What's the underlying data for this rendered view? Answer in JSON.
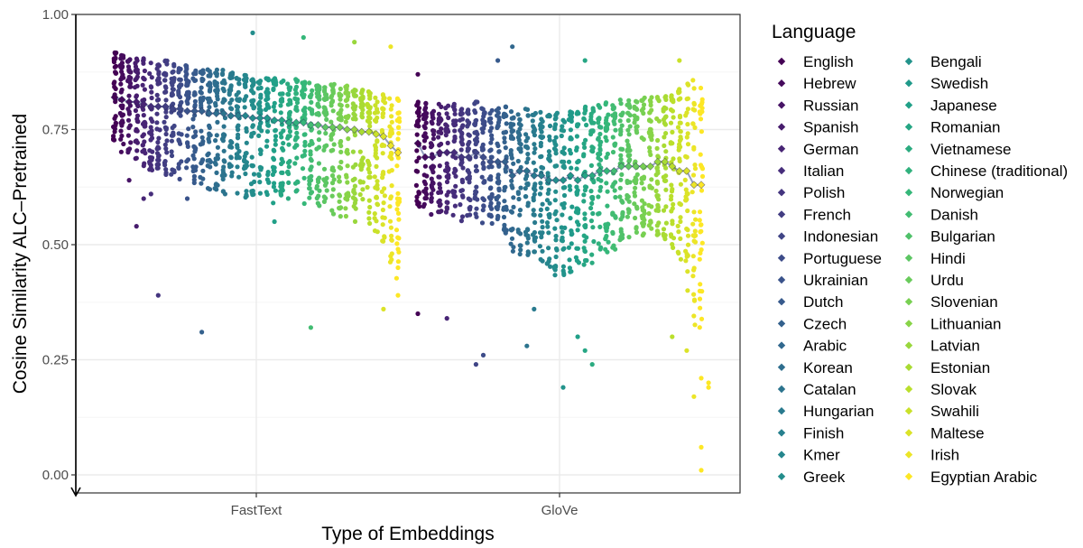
{
  "chart_data": {
    "type": "scatter",
    "title": "",
    "xlabel": "Type of Embeddings",
    "ylabel": "Cosine Similarity ALC–Pretrained",
    "categories": [
      "FastText",
      "GloVe"
    ],
    "y_ticks": [
      "0.00",
      "0.25",
      "0.50",
      "0.75",
      "1.00"
    ],
    "ylim": [
      0,
      1
    ],
    "grid": true,
    "legend_title": "Language",
    "legend_position": "right",
    "palette": "viridis",
    "languages": [
      "English",
      "Hebrew",
      "Russian",
      "Spanish",
      "German",
      "Italian",
      "Polish",
      "French",
      "Indonesian",
      "Portuguese",
      "Ukrainian",
      "Dutch",
      "Czech",
      "Arabic",
      "Korean",
      "Catalan",
      "Hungarian",
      "Finish",
      "Kmer",
      "Greek",
      "Bengali",
      "Swedish",
      "Japanese",
      "Romanian",
      "Vietnamese",
      "Chinese (traditional)",
      "Norwegian",
      "Danish",
      "Bulgarian",
      "Hindi",
      "Urdu",
      "Slovenian",
      "Lithuanian",
      "Latvian",
      "Estonian",
      "Slovak",
      "Swahili",
      "Maltese",
      "Irish",
      "Egyptian Arabic"
    ],
    "series": [
      {
        "name": "FastText",
        "means": [
          0.82,
          0.815,
          0.81,
          0.81,
          0.805,
          0.8,
          0.8,
          0.8,
          0.795,
          0.795,
          0.79,
          0.79,
          0.79,
          0.785,
          0.785,
          0.785,
          0.78,
          0.78,
          0.78,
          0.775,
          0.775,
          0.775,
          0.77,
          0.77,
          0.765,
          0.765,
          0.765,
          0.76,
          0.76,
          0.755,
          0.755,
          0.755,
          0.75,
          0.75,
          0.745,
          0.745,
          0.74,
          0.735,
          0.715,
          0.7
        ],
        "upper": [
          0.92,
          0.915,
          0.91,
          0.91,
          0.905,
          0.9,
          0.9,
          0.9,
          0.895,
          0.89,
          0.89,
          0.89,
          0.885,
          0.885,
          0.88,
          0.88,
          0.875,
          0.875,
          0.87,
          0.87,
          0.87,
          0.865,
          0.865,
          0.86,
          0.86,
          0.86,
          0.855,
          0.855,
          0.85,
          0.85,
          0.85,
          0.845,
          0.845,
          0.84,
          0.84,
          0.835,
          0.835,
          0.83,
          0.82,
          0.82
        ],
        "lower": [
          0.72,
          0.7,
          0.69,
          0.68,
          0.67,
          0.66,
          0.66,
          0.65,
          0.65,
          0.64,
          0.64,
          0.63,
          0.63,
          0.62,
          0.62,
          0.61,
          0.61,
          0.61,
          0.6,
          0.6,
          0.6,
          0.6,
          0.59,
          0.59,
          0.59,
          0.58,
          0.58,
          0.58,
          0.57,
          0.57,
          0.56,
          0.56,
          0.55,
          0.55,
          0.55,
          0.54,
          0.52,
          0.5,
          0.45,
          0.42
        ],
        "outliers": [
          [
            2,
            0.64
          ],
          [
            3,
            0.54
          ],
          [
            4,
            0.6
          ],
          [
            5,
            0.61
          ],
          [
            6,
            0.39
          ],
          [
            10,
            0.6
          ],
          [
            12,
            0.31
          ],
          [
            14,
            0.62
          ],
          [
            19,
            0.96
          ],
          [
            22,
            0.55
          ],
          [
            23,
            0.63
          ],
          [
            26,
            0.95
          ],
          [
            30,
            0.65
          ],
          [
            33,
            0.94
          ],
          [
            35,
            0.57
          ],
          [
            27,
            0.32
          ],
          [
            37,
            0.36
          ],
          [
            38,
            0.93
          ],
          [
            39,
            0.39
          ],
          [
            39,
            0.45
          ]
        ]
      },
      {
        "name": "GloVe",
        "means": [
          0.72,
          0.69,
          0.69,
          0.7,
          0.7,
          0.7,
          0.69,
          0.69,
          0.7,
          0.69,
          0.68,
          0.68,
          0.68,
          0.65,
          0.66,
          0.66,
          0.65,
          0.65,
          0.64,
          0.64,
          0.64,
          0.65,
          0.64,
          0.65,
          0.65,
          0.66,
          0.66,
          0.66,
          0.67,
          0.67,
          0.67,
          0.67,
          0.67,
          0.68,
          0.68,
          0.67,
          0.66,
          0.66,
          0.63,
          0.63
        ],
        "upper": [
          0.82,
          0.81,
          0.8,
          0.81,
          0.81,
          0.81,
          0.8,
          0.8,
          0.81,
          0.8,
          0.8,
          0.8,
          0.8,
          0.79,
          0.8,
          0.8,
          0.79,
          0.79,
          0.79,
          0.79,
          0.79,
          0.8,
          0.79,
          0.8,
          0.8,
          0.81,
          0.81,
          0.81,
          0.82,
          0.82,
          0.82,
          0.82,
          0.82,
          0.83,
          0.83,
          0.83,
          0.84,
          0.85,
          0.86,
          0.86
        ],
        "lower": [
          0.58,
          0.57,
          0.56,
          0.57,
          0.57,
          0.56,
          0.55,
          0.55,
          0.56,
          0.54,
          0.53,
          0.52,
          0.52,
          0.48,
          0.47,
          0.46,
          0.45,
          0.44,
          0.43,
          0.43,
          0.43,
          0.44,
          0.44,
          0.45,
          0.46,
          0.47,
          0.48,
          0.49,
          0.5,
          0.51,
          0.51,
          0.52,
          0.52,
          0.52,
          0.51,
          0.49,
          0.45,
          0.4,
          0.32,
          0.3
        ],
        "outliers": [
          [
            0,
            0.87
          ],
          [
            0,
            0.35
          ],
          [
            4,
            0.34
          ],
          [
            8,
            0.24
          ],
          [
            9,
            0.26
          ],
          [
            11,
            0.9
          ],
          [
            13,
            0.93
          ],
          [
            15,
            0.28
          ],
          [
            16,
            0.36
          ],
          [
            20,
            0.19
          ],
          [
            22,
            0.3
          ],
          [
            23,
            0.27
          ],
          [
            23,
            0.9
          ],
          [
            24,
            0.24
          ],
          [
            35,
            0.3
          ],
          [
            36,
            0.9
          ],
          [
            37,
            0.27
          ],
          [
            38,
            0.17
          ],
          [
            39,
            0.21
          ],
          [
            39,
            0.06
          ],
          [
            39,
            0.01
          ],
          [
            40,
            0.19
          ],
          [
            40,
            0.2
          ]
        ]
      }
    ]
  },
  "colors": {
    "panel_border": "#333333",
    "grid_major": "#ebebeb",
    "grid_minor": "#f5f5f5",
    "tick": "#333333",
    "tick_label": "#4d4d4d"
  }
}
